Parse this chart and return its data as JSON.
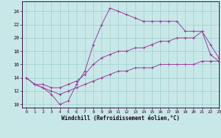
{
  "xlabel": "Windchill (Refroidissement éolien,°C)",
  "xlim": [
    -0.5,
    23
  ],
  "ylim": [
    9.5,
    25.5
  ],
  "xticks": [
    0,
    1,
    2,
    3,
    4,
    5,
    6,
    7,
    8,
    9,
    10,
    11,
    12,
    13,
    14,
    15,
    16,
    17,
    18,
    19,
    20,
    21,
    22,
    23
  ],
  "yticks": [
    10,
    12,
    14,
    16,
    18,
    20,
    22,
    24
  ],
  "bg_color": "#c8e8e8",
  "grid_color": "#9ecece",
  "line_color": "#993399",
  "hours": [
    0,
    1,
    2,
    3,
    4,
    5,
    6,
    7,
    8,
    9,
    10,
    11,
    12,
    13,
    14,
    15,
    16,
    17,
    18,
    19,
    20,
    21,
    22,
    23
  ],
  "line1": [
    14.0,
    13.0,
    12.5,
    11.5,
    10.0,
    10.5,
    13.0,
    15.0,
    19.0,
    22.0,
    24.5,
    24.0,
    23.5,
    23.0,
    22.5,
    22.5,
    22.5,
    22.5,
    22.5,
    21.0,
    21.0,
    21.0,
    17.5,
    16.5
  ],
  "line2": [
    14.0,
    13.0,
    13.0,
    12.5,
    12.5,
    13.0,
    13.5,
    14.5,
    16.0,
    17.0,
    17.5,
    18.0,
    18.0,
    18.5,
    18.5,
    19.0,
    19.5,
    19.5,
    20.0,
    20.0,
    20.0,
    21.0,
    19.0,
    17.0
  ],
  "line3": [
    14.0,
    13.0,
    12.5,
    12.0,
    11.5,
    12.0,
    12.5,
    13.0,
    13.5,
    14.0,
    14.5,
    15.0,
    15.0,
    15.5,
    15.5,
    15.5,
    16.0,
    16.0,
    16.0,
    16.0,
    16.0,
    16.5,
    16.5,
    16.5
  ]
}
